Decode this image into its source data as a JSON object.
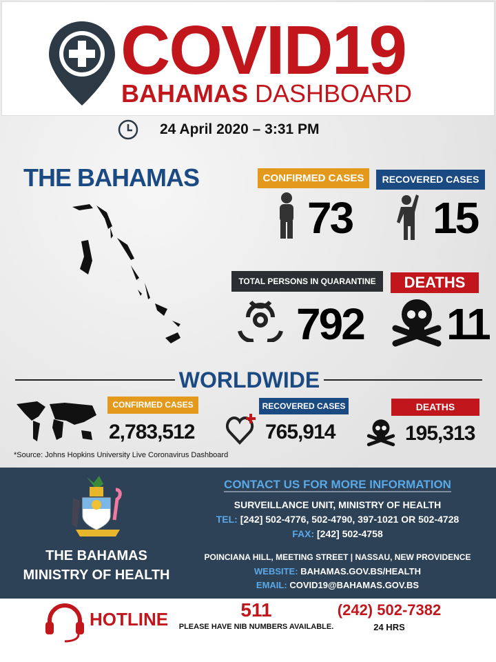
{
  "header": {
    "title": "COVID19",
    "subtitle_bold": "BAHAMAS",
    "subtitle_light": "DASHBOARD",
    "icon": "medical-pin-icon"
  },
  "date": {
    "icon": "clock-icon",
    "text": "24 April 2020 – 3:31 PM"
  },
  "bahamas": {
    "title": "THE BAHAMAS",
    "confirmed": {
      "label": "CONFIRMED CASES",
      "value": "73",
      "color": "#e39a1c"
    },
    "recovered": {
      "label": "RECOVERED CASES",
      "value": "15",
      "color": "#1b4a82"
    },
    "quarantine": {
      "label": "TOTAL PERSONS IN QUARANTINE",
      "value": "792",
      "color": "#2b2f33"
    },
    "deaths": {
      "label": "DEATHS",
      "value": "11",
      "color": "#c0161c"
    }
  },
  "worldwide": {
    "title": "WORLDWIDE",
    "confirmed": {
      "label": "CONFIRMED CASES",
      "value": "2,783,512"
    },
    "recovered": {
      "label": "RECOVERED CASES",
      "value": "765,914"
    },
    "deaths": {
      "label": "DEATHS",
      "value": "195,313"
    },
    "source": "*Source: Johns Hopkins University Live Coronavirus Dashboard"
  },
  "contact": {
    "ministry_line1": "THE BAHAMAS",
    "ministry_line2": "MINISTRY OF HEALTH",
    "heading": "CONTACT US FOR MORE INFORMATION",
    "unit": "SURVEILLANCE UNIT, MINISTRY OF HEALTH",
    "tel_label": "TEL:",
    "tel": "[242] 502-4776, 502-4790, 397-1021 OR 502-4728",
    "fax_label": "FAX:",
    "fax": "[242] 502-4758",
    "address": "POINCIANA HILL, MEETING STREET  |  NASSAU, NEW PROVIDENCE",
    "website_label": "WEBSITE:",
    "website": "BAHAMAS.GOV.BS/HEALTH",
    "email_label": "EMAIL:",
    "email": "COVID19@BAHAMAS.GOV.BS"
  },
  "hotline": {
    "label": "HOTLINE",
    "number1": "511",
    "note1": "PLEASE HAVE NIB NUMBERS AVAILABLE.",
    "number2": "(242) 502-7382",
    "note2": "24 HRS"
  },
  "colors": {
    "red": "#c0161c",
    "navy": "#1b4a82",
    "panel": "#2d4157",
    "light_blue": "#5aa9e6",
    "orange": "#e39a1c"
  }
}
